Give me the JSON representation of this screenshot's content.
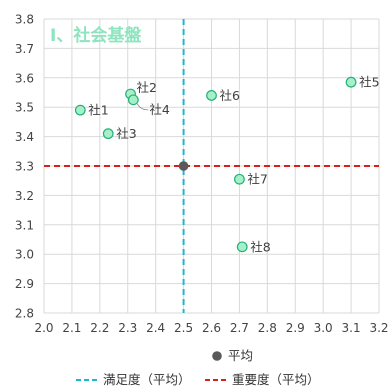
{
  "chart_data": {
    "type": "scatter",
    "title": "Ⅰ、社会基盤",
    "xlabel": "",
    "ylabel": "",
    "xlim": [
      2.0,
      3.2
    ],
    "ylim": [
      2.8,
      3.8
    ],
    "x_ticks": [
      "2.0",
      "2.1",
      "2.2",
      "2.3",
      "2.4",
      "2.5",
      "2.6",
      "2.7",
      "2.8",
      "2.9",
      "3.0",
      "3.1",
      "3.2"
    ],
    "y_ticks": [
      "2.8",
      "2.9",
      "3.0",
      "3.1",
      "3.2",
      "3.3",
      "3.4",
      "3.5",
      "3.6",
      "3.7",
      "3.8"
    ],
    "grid": true,
    "points": [
      {
        "label": "社1",
        "x": 2.13,
        "y": 3.49
      },
      {
        "label": "社2",
        "x": 2.31,
        "y": 3.545
      },
      {
        "label": "社3",
        "x": 2.23,
        "y": 3.41
      },
      {
        "label": "社4",
        "x": 2.32,
        "y": 3.525
      },
      {
        "label": "社5",
        "x": 3.1,
        "y": 3.585
      },
      {
        "label": "社6",
        "x": 2.6,
        "y": 3.54
      },
      {
        "label": "社7",
        "x": 2.7,
        "y": 3.255
      },
      {
        "label": "社8",
        "x": 2.71,
        "y": 3.025
      }
    ],
    "average_point": {
      "label": "平均",
      "x": 2.5,
      "y": 3.3
    },
    "reference_lines": {
      "vertical": {
        "label": "満足度（平均）",
        "x": 2.5,
        "color": "#20b6cf"
      },
      "horizontal": {
        "label": "重要度（平均）",
        "y": 3.3,
        "color": "#d91e1e"
      }
    },
    "legend": {
      "placement": "bottom"
    },
    "colors": {
      "point_fill": "#a6f0c8",
      "point_stroke": "#25b07a",
      "average_point": "#595959",
      "grid": "#d9d9d9",
      "title": "#8ee4bf"
    }
  }
}
